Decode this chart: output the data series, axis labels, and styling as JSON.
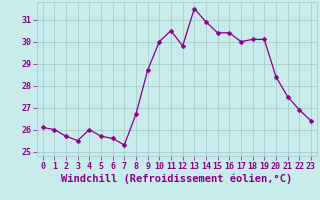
{
  "x": [
    0,
    1,
    2,
    3,
    4,
    5,
    6,
    7,
    8,
    9,
    10,
    11,
    12,
    13,
    14,
    15,
    16,
    17,
    18,
    19,
    20,
    21,
    22,
    23
  ],
  "y": [
    26.1,
    26.0,
    25.7,
    25.5,
    26.0,
    25.7,
    25.6,
    25.3,
    26.7,
    28.7,
    30.0,
    30.5,
    29.8,
    31.5,
    30.9,
    30.4,
    30.4,
    30.0,
    30.1,
    30.1,
    28.4,
    27.5,
    26.9,
    26.4
  ],
  "line_color": "#880088",
  "marker": "D",
  "marker_size": 2.5,
  "bg_color": "#c8ecec",
  "grid_color": "#aacccc",
  "xlabel": "Windchill (Refroidissement éolien,°C)",
  "xlim": [
    -0.5,
    23.5
  ],
  "ylim": [
    24.8,
    31.8
  ],
  "yticks": [
    25,
    26,
    27,
    28,
    29,
    30,
    31
  ],
  "xticks": [
    0,
    1,
    2,
    3,
    4,
    5,
    6,
    7,
    8,
    9,
    10,
    11,
    12,
    13,
    14,
    15,
    16,
    17,
    18,
    19,
    20,
    21,
    22,
    23
  ],
  "font_color": "#880088",
  "label_fontsize": 7.5,
  "tick_fontsize": 6.0
}
